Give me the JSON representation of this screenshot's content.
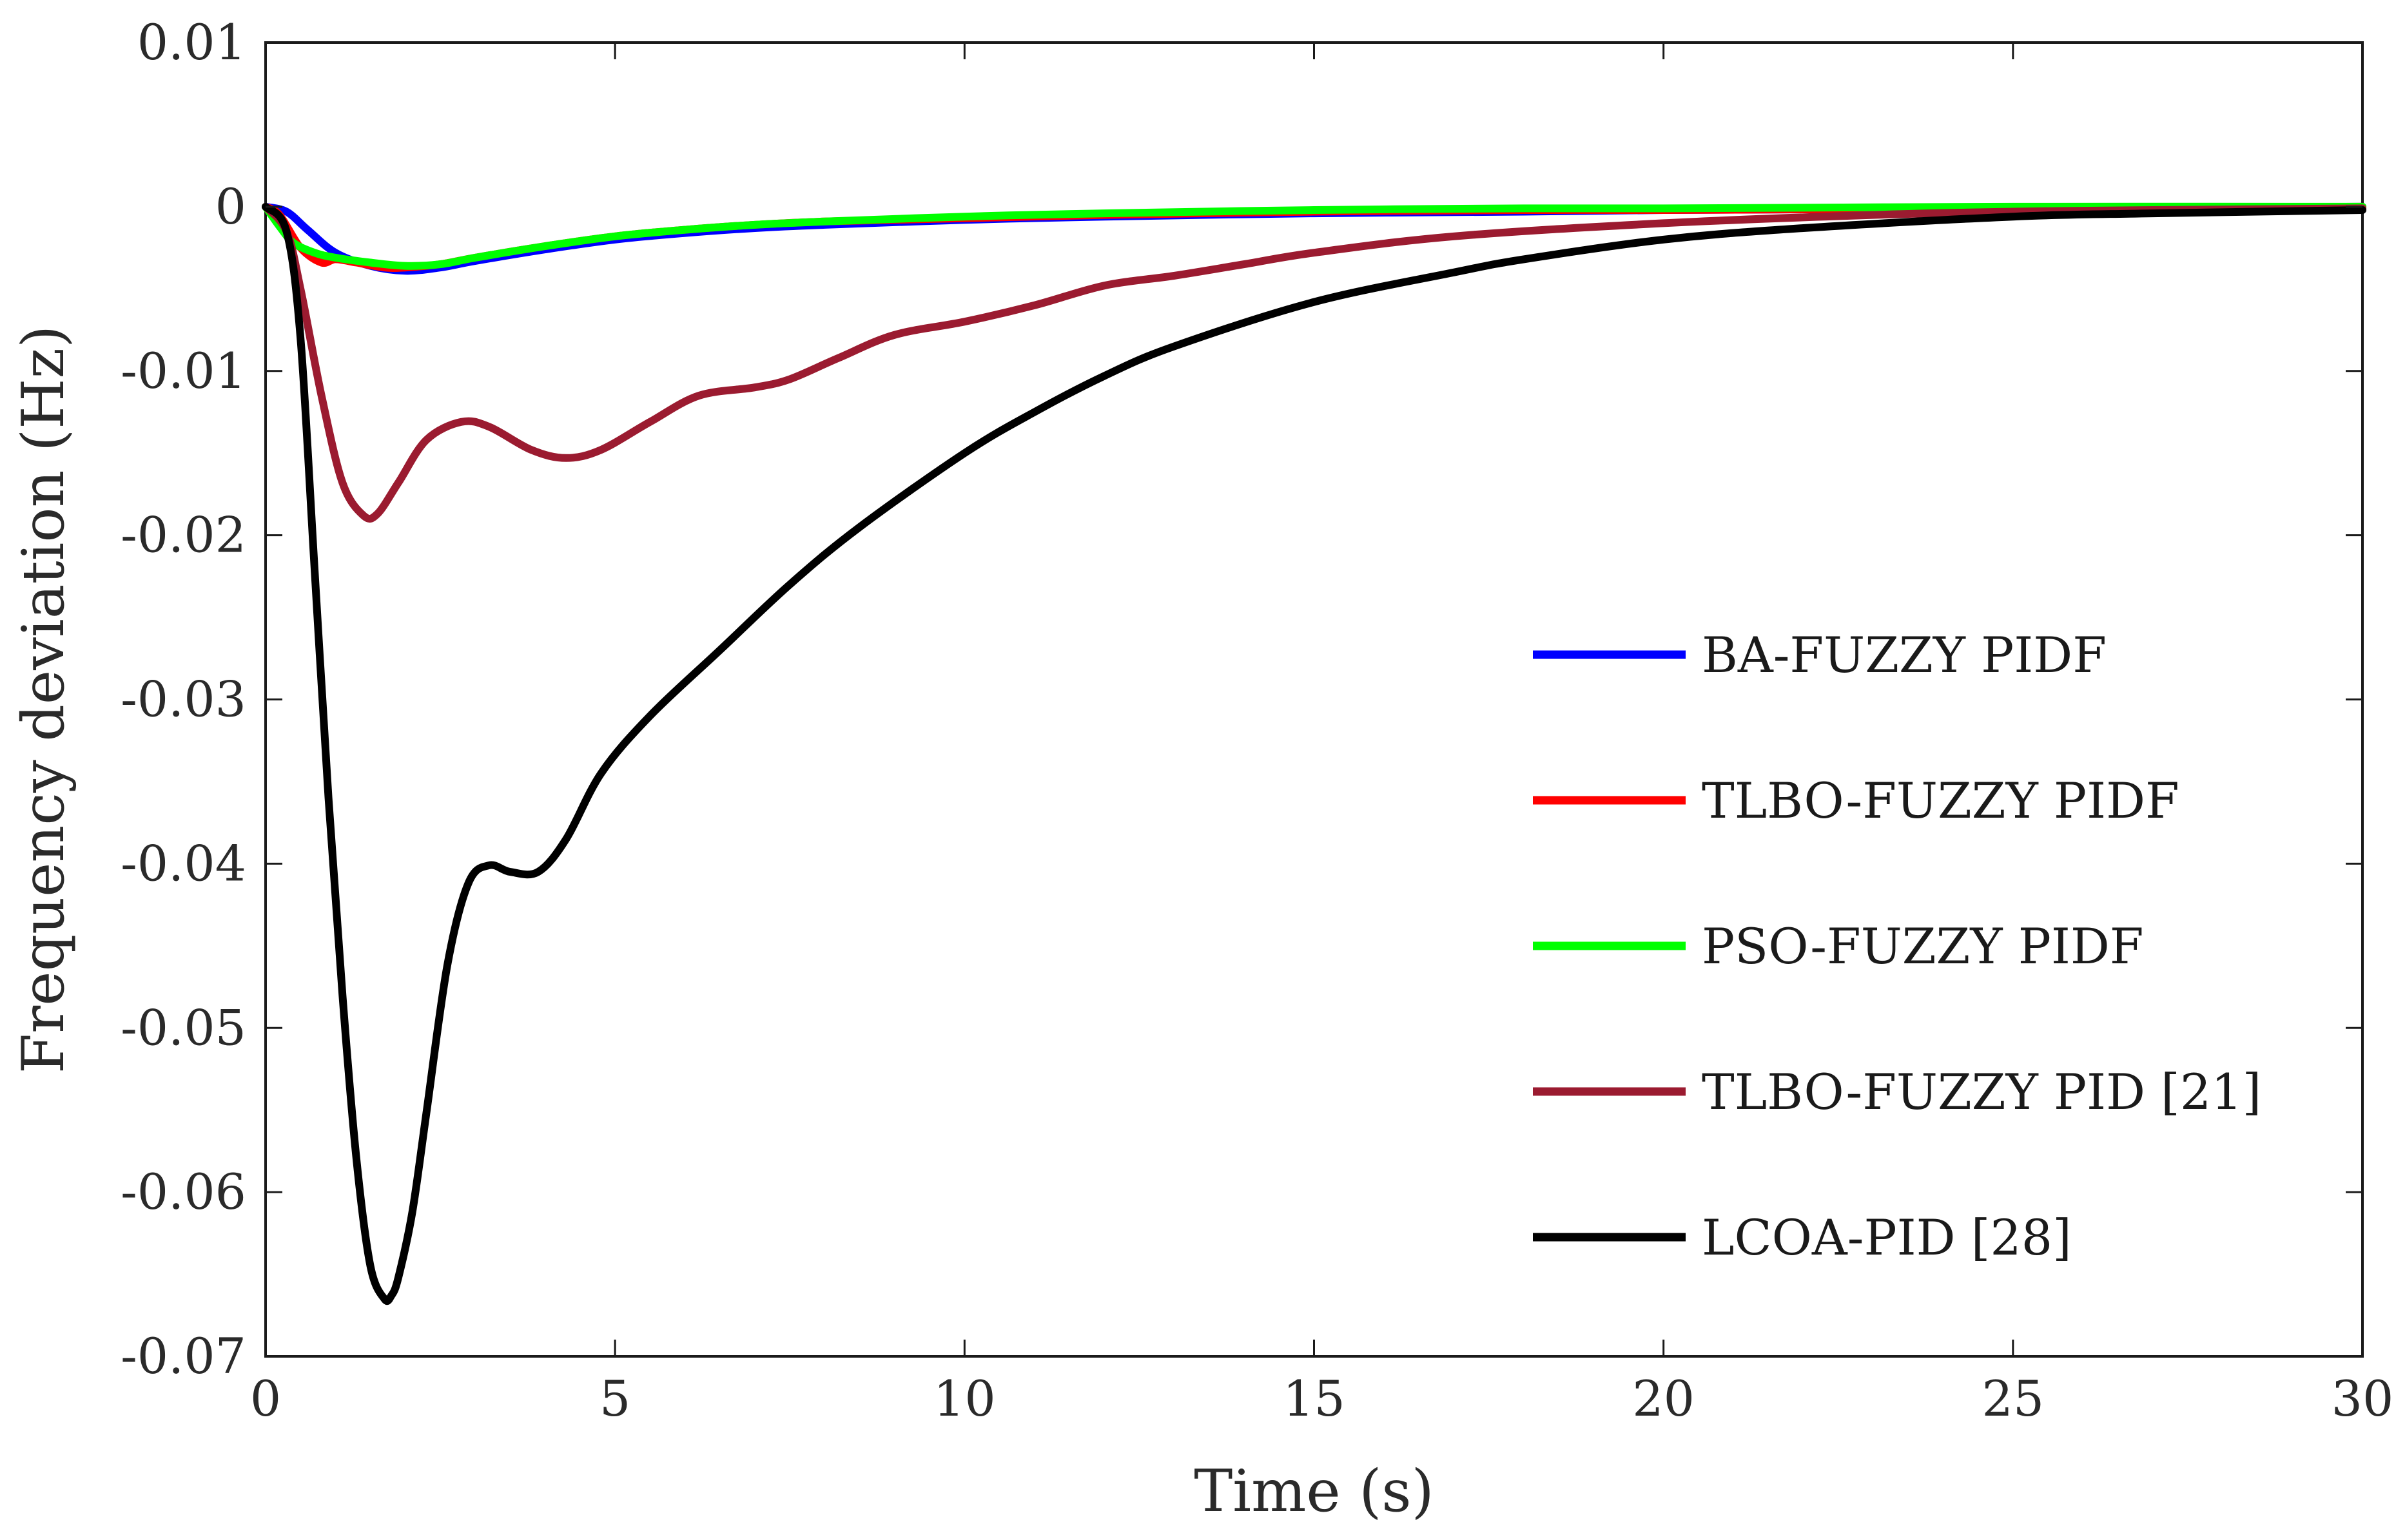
{
  "chart_data": {
    "type": "line",
    "title": "",
    "xlabel": "Time (s)",
    "ylabel": "Frequency deviation (Hz)",
    "xlim": [
      0,
      30
    ],
    "ylim": [
      -0.07,
      0.01
    ],
    "xticks": [
      0,
      5,
      10,
      15,
      20,
      25,
      30
    ],
    "xtick_labels": [
      "0",
      "5",
      "10",
      "15",
      "20",
      "25",
      "30"
    ],
    "yticks": [
      0.01,
      0,
      -0.01,
      -0.02,
      -0.03,
      -0.04,
      -0.05,
      -0.06,
      -0.07
    ],
    "ytick_labels": [
      "0.01",
      "0",
      "-0.01",
      "-0.02",
      "-0.03",
      "-0.04",
      "-0.05",
      "-0.06",
      "-0.07"
    ],
    "grid": false,
    "legend_position": "right",
    "series": [
      {
        "name": "BA-FUZZY PIDF",
        "color": "#0000ff",
        "x": [
          0,
          0.3,
          0.6,
          1.0,
          1.5,
          2.0,
          2.5,
          3.0,
          4.0,
          5.0,
          6.0,
          7.0,
          8.0,
          10.0,
          12.0,
          15.0,
          18.0,
          20.0,
          25.0,
          30.0
        ],
        "y": [
          0,
          -0.0003,
          -0.0014,
          -0.0028,
          -0.0036,
          -0.0039,
          -0.0037,
          -0.0033,
          -0.0026,
          -0.002,
          -0.0016,
          -0.0013,
          -0.0011,
          -0.0008,
          -0.0006,
          -0.0004,
          -0.0003,
          -0.0002,
          -0.0001,
          0
        ]
      },
      {
        "name": "TLBO-FUZZY PIDF",
        "color": "#ff0000",
        "x": [
          0,
          0.2,
          0.5,
          0.8,
          1.0,
          1.3,
          1.7,
          2.0,
          2.5,
          3.0,
          4.0,
          5.0,
          6.0,
          7.0,
          8.0,
          10.0,
          12.0,
          15.0,
          18.0,
          20.0,
          25.0,
          30.0
        ],
        "y": [
          0,
          -0.0005,
          -0.0025,
          -0.0034,
          -0.0032,
          -0.0034,
          -0.0037,
          -0.0037,
          -0.0035,
          -0.0031,
          -0.0024,
          -0.0018,
          -0.0014,
          -0.0011,
          -0.0009,
          -0.0007,
          -0.0005,
          -0.0003,
          -0.0002,
          -0.0002,
          -0.0001,
          0
        ]
      },
      {
        "name": "PSO-FUZZY PIDF",
        "color": "#00ff00",
        "x": [
          0,
          0.2,
          0.4,
          0.7,
          1.0,
          1.5,
          2.0,
          2.5,
          3.0,
          4.0,
          5.0,
          6.0,
          7.0,
          8.0,
          10.0,
          12.0,
          15.0,
          18.0,
          20.0,
          25.0,
          30.0
        ],
        "y": [
          0,
          -0.0012,
          -0.0022,
          -0.0028,
          -0.0031,
          -0.0034,
          -0.0036,
          -0.0035,
          -0.0031,
          -0.0024,
          -0.0018,
          -0.0014,
          -0.0011,
          -0.0009,
          -0.0006,
          -0.0004,
          -0.0002,
          -0.0001,
          -0.0001,
          0,
          0
        ]
      },
      {
        "name": "TLBO-FUZZY PID [21]",
        "color": "#9b1b30",
        "x": [
          0,
          0.3,
          0.5,
          0.8,
          1.1,
          1.4,
          1.6,
          1.9,
          2.3,
          2.8,
          3.2,
          3.8,
          4.3,
          4.8,
          5.5,
          6.2,
          7.0,
          7.5,
          8.2,
          9.0,
          10.0,
          11.0,
          12.0,
          13.0,
          14.0,
          15.0,
          17.0,
          20.0,
          23.0,
          25.0,
          27.0,
          30.0
        ],
        "y": [
          0,
          -0.0015,
          -0.005,
          -0.0115,
          -0.0168,
          -0.0188,
          -0.0187,
          -0.0168,
          -0.0142,
          -0.0131,
          -0.0134,
          -0.0148,
          -0.0153,
          -0.0148,
          -0.0131,
          -0.0115,
          -0.011,
          -0.0105,
          -0.0092,
          -0.0078,
          -0.007,
          -0.006,
          -0.0048,
          -0.0042,
          -0.0035,
          -0.0028,
          -0.0018,
          -0.001,
          -0.0005,
          -0.0003,
          -0.0002,
          -0.0001
        ]
      },
      {
        "name": "LCOA-PID [28]",
        "color": "#000000",
        "x": [
          0,
          0.3,
          0.5,
          0.7,
          0.9,
          1.1,
          1.3,
          1.5,
          1.7,
          1.8,
          1.9,
          2.1,
          2.3,
          2.6,
          2.9,
          3.2,
          3.5,
          3.9,
          4.3,
          4.8,
          5.5,
          6.5,
          7.5,
          8.5,
          10.0,
          11.0,
          12.0,
          13.0,
          15.0,
          17.0,
          18.0,
          20.0,
          22.0,
          25.0,
          27.0,
          30.0
        ],
        "y": [
          0,
          -0.0015,
          -0.008,
          -0.022,
          -0.036,
          -0.048,
          -0.058,
          -0.0645,
          -0.0665,
          -0.0663,
          -0.0652,
          -0.0612,
          -0.0552,
          -0.0462,
          -0.0412,
          -0.0401,
          -0.0405,
          -0.0405,
          -0.0385,
          -0.0345,
          -0.031,
          -0.027,
          -0.023,
          -0.0195,
          -0.015,
          -0.0125,
          -0.0103,
          -0.0085,
          -0.0058,
          -0.004,
          -0.0032,
          -0.002,
          -0.0013,
          -0.0006,
          -0.0004,
          -0.0002
        ]
      }
    ]
  }
}
